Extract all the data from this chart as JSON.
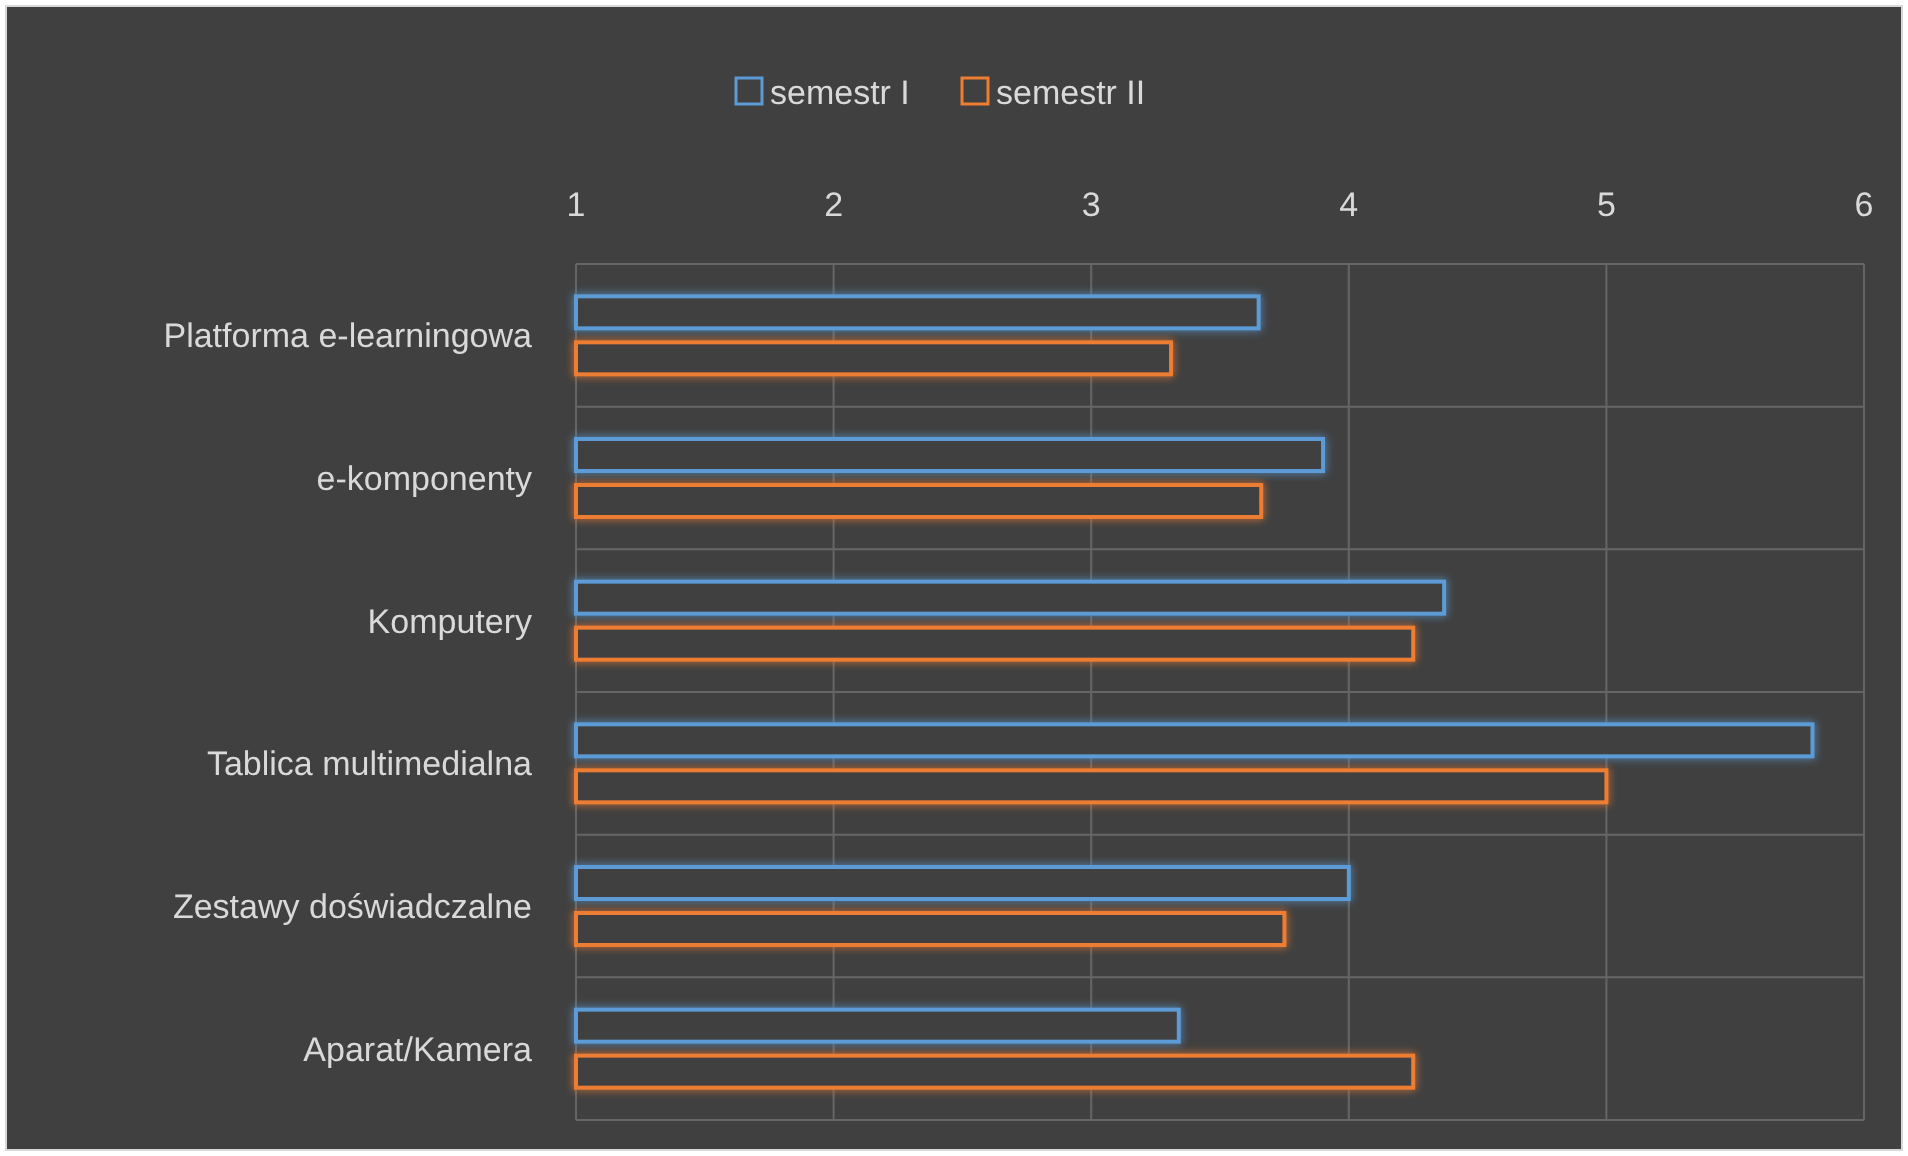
{
  "chart_data": {
    "type": "bar",
    "orientation": "horizontal",
    "categories": [
      "Platforma e-learningowa",
      "e-komponenty",
      "Komputery",
      "Tablica multimedialna",
      "Zestawy doświadczalne",
      "Aparat/Kamera"
    ],
    "series": [
      {
        "name": "semestr I",
        "color": "#5b9bd5",
        "values": [
          3.65,
          3.9,
          4.37,
          5.8,
          4.0,
          3.34
        ]
      },
      {
        "name": "semestr II",
        "color": "#ed7d31",
        "values": [
          3.31,
          3.66,
          4.25,
          5.0,
          3.75,
          4.25
        ]
      }
    ],
    "xlim": [
      1,
      6
    ],
    "xticks": [
      1,
      2,
      3,
      4,
      5,
      6
    ],
    "grid": true,
    "legend": "top"
  }
}
